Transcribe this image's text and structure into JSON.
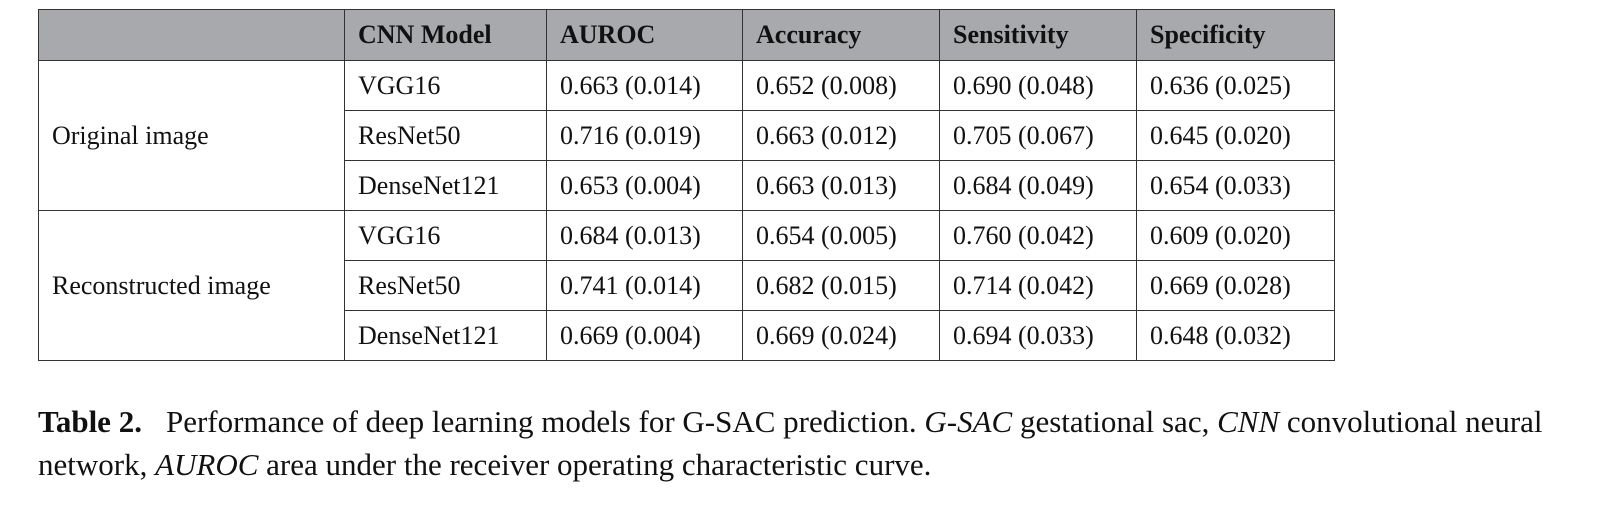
{
  "table": {
    "headers": [
      "",
      "CNN Model",
      "AUROC",
      "Accuracy",
      "Sensitivity",
      "Specificity"
    ],
    "groups": [
      {
        "label": "Original image",
        "rows": [
          [
            "VGG16",
            "0.663 (0.014)",
            "0.652 (0.008)",
            "0.690 (0.048)",
            "0.636 (0.025)"
          ],
          [
            "ResNet50",
            "0.716 (0.019)",
            "0.663 (0.012)",
            "0.705 (0.067)",
            "0.645 (0.020)"
          ],
          [
            "DenseNet121",
            "0.653 (0.004)",
            "0.663 (0.013)",
            "0.684 (0.049)",
            "0.654 (0.033)"
          ]
        ]
      },
      {
        "label": "Reconstructed image",
        "rows": [
          [
            "VGG16",
            "0.684 (0.013)",
            "0.654 (0.005)",
            "0.760 (0.042)",
            "0.609 (0.020)"
          ],
          [
            "ResNet50",
            "0.741 (0.014)",
            "0.682 (0.015)",
            "0.714 (0.042)",
            "0.669 (0.028)"
          ],
          [
            "DenseNet121",
            "0.669 (0.004)",
            "0.669 (0.024)",
            "0.694 (0.033)",
            "0.648 (0.032)"
          ]
        ]
      }
    ]
  },
  "caption": {
    "label": "Table 2.",
    "text_1": "Performance of deep learning models for G-SAC prediction. ",
    "abbr_1": "G-SAC",
    "text_2": " gestational sac, ",
    "abbr_2": "CNN",
    "text_3": " convolutional neural network, ",
    "abbr_3": "AUROC",
    "text_4": " area under the receiver operating characteristic curve."
  }
}
